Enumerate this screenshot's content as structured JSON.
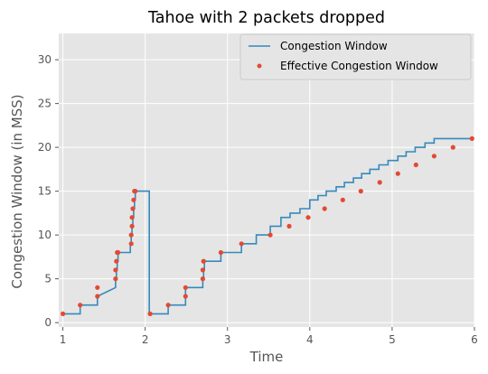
{
  "chart_data": {
    "type": "line",
    "title": "Tahoe with 2 packets dropped",
    "xlabel": "Time",
    "ylabel": "Congestion Window (in MSS)",
    "xlim": [
      0.95,
      6.0
    ],
    "ylim": [
      -0.5,
      33
    ],
    "xticks": [
      "1",
      "2",
      "3",
      "4",
      "5",
      "6"
    ],
    "yticks": [
      "0",
      "5",
      "10",
      "15",
      "20",
      "25",
      "30"
    ],
    "grid": true,
    "legend_position": "top-right",
    "colors": {
      "line": "#348ABD",
      "points": "#E24A33",
      "background": "#E5E5E5",
      "grid": "#FFFFFF"
    },
    "series": [
      {
        "name": "Congestion Window",
        "kind": "step",
        "x": [
          1.0,
          1.21,
          1.21,
          1.42,
          1.42,
          1.64,
          1.64,
          1.65,
          1.65,
          1.66,
          1.66,
          1.67,
          1.67,
          1.82,
          1.82,
          1.83,
          1.83,
          1.84,
          1.84,
          1.85,
          1.85,
          1.86,
          1.86,
          1.87,
          1.87,
          1.88,
          1.88,
          2.05,
          2.05,
          2.28,
          2.28,
          2.49,
          2.49,
          2.7,
          2.7,
          2.71,
          2.71,
          2.72,
          2.72,
          2.92,
          2.92,
          3.17,
          3.17,
          3.35,
          3.35,
          3.52,
          3.52,
          3.65,
          3.65,
          3.76,
          3.76,
          3.88,
          3.88,
          4.0,
          4.0,
          4.1,
          4.1,
          4.2,
          4.2,
          4.32,
          4.32,
          4.42,
          4.42,
          4.53,
          4.53,
          4.63,
          4.63,
          4.73,
          4.73,
          4.84,
          4.84,
          4.95,
          4.95,
          5.07,
          5.07,
          5.17,
          5.17,
          5.28,
          5.28,
          5.4,
          5.4,
          5.51,
          5.51,
          5.62,
          5.62,
          5.74,
          5.74,
          5.85,
          5.85,
          5.97
        ],
        "y": [
          1,
          1,
          2,
          2,
          3,
          4,
          5,
          5,
          6,
          6,
          7,
          7,
          8,
          8,
          9,
          9,
          10,
          10,
          11,
          11,
          12,
          12,
          13,
          13,
          14,
          14,
          15,
          15,
          1,
          1,
          2,
          2,
          4,
          4,
          5,
          5,
          6,
          6,
          7,
          7,
          8,
          8,
          9,
          9,
          10,
          10,
          11,
          11,
          12,
          12,
          12.5,
          12.5,
          13,
          13,
          14,
          14,
          14.5,
          14.5,
          15,
          15,
          15.5,
          15.5,
          16,
          16,
          16.5,
          16.5,
          17,
          17,
          17.5,
          17.5,
          18,
          18,
          18.5,
          18.5,
          19,
          19,
          19.5,
          19.5,
          20,
          20,
          20.5,
          20.5,
          21,
          21,
          21,
          21,
          21,
          21,
          21,
          21
        ]
      },
      {
        "name": "Effective Congestion Window",
        "kind": "points",
        "x": [
          1.0,
          1.21,
          1.42,
          1.42,
          1.64,
          1.64,
          1.65,
          1.66,
          1.67,
          1.83,
          1.83,
          1.84,
          1.84,
          1.85,
          1.86,
          1.87,
          1.88,
          2.06,
          2.28,
          2.49,
          2.49,
          2.7,
          2.7,
          2.71,
          2.71,
          2.92,
          3.17,
          3.52,
          3.75,
          3.98,
          4.18,
          4.4,
          4.62,
          4.85,
          5.07,
          5.29,
          5.51,
          5.74,
          5.97
        ],
        "y": [
          1,
          2,
          3,
          4,
          5,
          6,
          7,
          8,
          8,
          9,
          10,
          11,
          12,
          13,
          14,
          15,
          15,
          1,
          2,
          3,
          4,
          5,
          6,
          7,
          7,
          8,
          9,
          10,
          11,
          12,
          13,
          14,
          15,
          16,
          17,
          18,
          19,
          20,
          21
        ]
      }
    ]
  }
}
